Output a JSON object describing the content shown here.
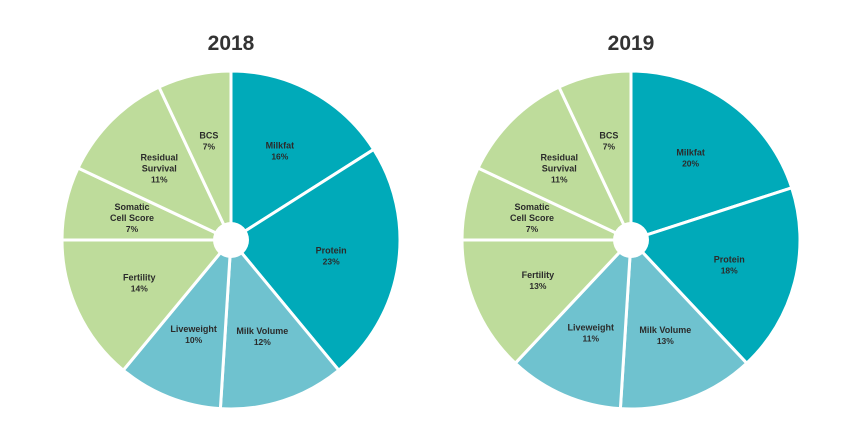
{
  "chart_data": [
    {
      "type": "pie",
      "title": "2018",
      "categories": [
        "Milkfat",
        "Protein",
        "Milk Volume",
        "Liveweight",
        "Fertility",
        "Somatic Cell Score",
        "Residual Survival",
        "BCS"
      ],
      "labels": [
        [
          "Milkfat"
        ],
        [
          "Protein"
        ],
        [
          "Milk Volume"
        ],
        [
          "Liveweight"
        ],
        [
          "Fertility"
        ],
        [
          "Somatic",
          "Cell Score"
        ],
        [
          "Residual",
          "Survival"
        ],
        [
          "BCS"
        ]
      ],
      "values": [
        16,
        23,
        12,
        10,
        14,
        7,
        11,
        7
      ],
      "value_labels": [
        "16%",
        "23%",
        "12%",
        "10%",
        "14%",
        "7%",
        "11%",
        "7%"
      ],
      "colors": [
        "#00aab9",
        "#00aab9",
        "#6fc2cf",
        "#6fc2cf",
        "#bedc9b",
        "#bedc9b",
        "#bedc9b",
        "#bedc9b"
      ]
    },
    {
      "type": "pie",
      "title": "2019",
      "categories": [
        "Milkfat",
        "Protein",
        "Milk Volume",
        "Liveweight",
        "Fertility",
        "Somatic Cell Score",
        "Residual Survival",
        "BCS"
      ],
      "labels": [
        [
          "Milkfat"
        ],
        [
          "Protein"
        ],
        [
          "Milk Volume"
        ],
        [
          "Liveweight"
        ],
        [
          "Fertility"
        ],
        [
          "Somatic",
          "Cell Score"
        ],
        [
          "Residual",
          "Survival"
        ],
        [
          "BCS"
        ]
      ],
      "values": [
        20,
        18,
        13,
        11,
        13,
        7,
        11,
        7
      ],
      "value_labels": [
        "20%",
        "18%",
        "13%",
        "11%",
        "13%",
        "7%",
        "11%",
        "7%"
      ],
      "colors": [
        "#00aab9",
        "#00aab9",
        "#6fc2cf",
        "#6fc2cf",
        "#bedc9b",
        "#bedc9b",
        "#bedc9b",
        "#bedc9b"
      ]
    }
  ]
}
